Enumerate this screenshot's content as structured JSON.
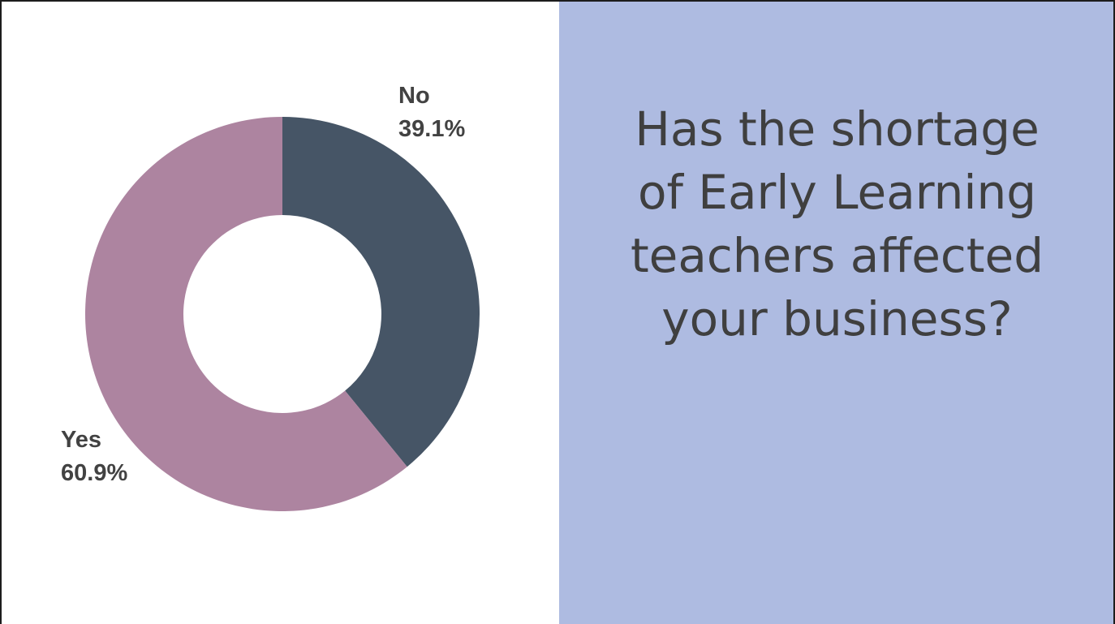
{
  "question": {
    "lines": [
      "Has the shortage",
      "of Early Learning",
      "teachers affected",
      "your business?"
    ]
  },
  "chart_data": {
    "type": "pie",
    "donut": true,
    "title": "",
    "slices": [
      {
        "label": "No",
        "value": 39.1,
        "value_label": "39.1%",
        "color": "#465566"
      },
      {
        "label": "Yes",
        "value": 60.9,
        "value_label": "60.9%",
        "color": "#ad84a0"
      }
    ],
    "start": "12 o'clock",
    "direction": "clockwise",
    "legend": "none"
  },
  "colors": {
    "question_panel_bg": "#aebbe1",
    "question_text": "#3f3f3f",
    "label_text": "#424242",
    "chart_bg": "#ffffff"
  }
}
